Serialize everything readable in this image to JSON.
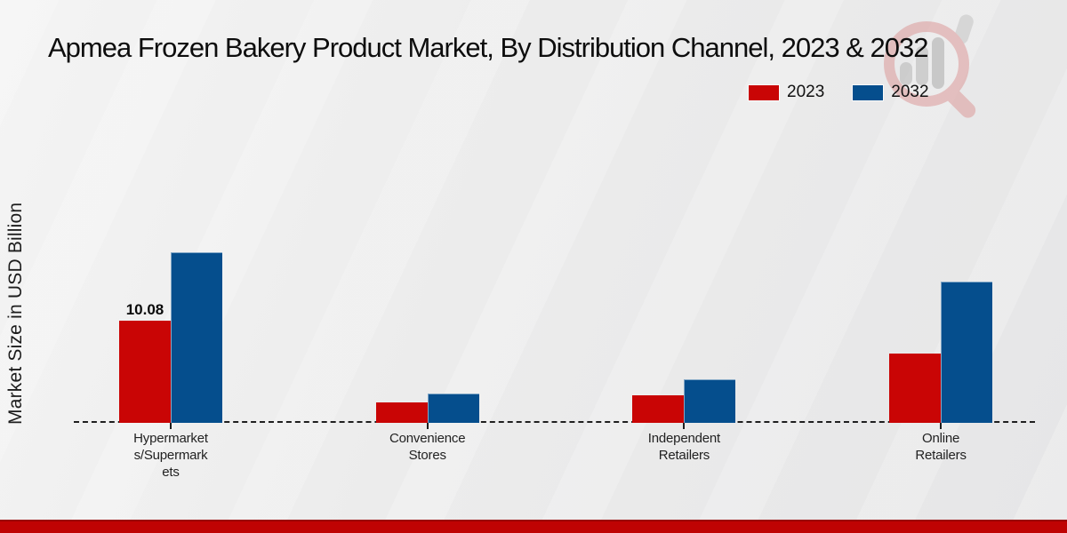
{
  "chart_data": {
    "type": "bar",
    "title": "Apmea Frozen Bakery Product Market, By Distribution Channel, 2023 & 2032",
    "ylabel": "Market Size in USD Billion",
    "xlabel": "",
    "categories": [
      "Hypermarkets/Supermarkets",
      "Convenience Stores",
      "Independent Retailers",
      "Online Retailers"
    ],
    "category_label_lines": [
      "Hypermarket\ns/Supermark\nets",
      "Convenience\nStores",
      "Independent\nRetailers",
      "Online\nRetailers"
    ],
    "series": [
      {
        "name": "2023",
        "color": "#c90505",
        "values": [
          10.08,
          1.98,
          2.74,
          6.85
        ]
      },
      {
        "name": "2032",
        "color": "#054e8d",
        "values": [
          16.78,
          2.91,
          4.26,
          13.88
        ]
      }
    ],
    "data_labels": [
      {
        "series": 0,
        "category": 0,
        "text": "10.08"
      }
    ],
    "ylim": [
      0,
      18
    ],
    "grid": false,
    "legend_position": "top-right",
    "axis_style": "dashed-baseline",
    "footer_accent_color": "#bf0303",
    "watermark_icon": "magnifier-bar-chart-logo"
  }
}
